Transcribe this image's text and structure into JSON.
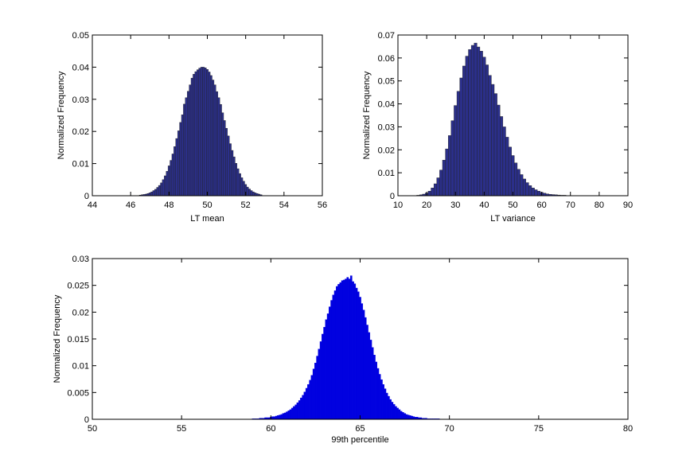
{
  "chart_data": [
    {
      "type": "bar",
      "panel": "lt-mean",
      "xlabel": "LT mean",
      "ylabel": "Normalized Frequency",
      "xlim": [
        44,
        56
      ],
      "ylim": [
        0,
        0.05
      ],
      "xticks": [
        "44",
        "46",
        "48",
        "50",
        "52",
        "54",
        "56"
      ],
      "yticks": [
        "0",
        "0.01",
        "0.02",
        "0.03",
        "0.04",
        "0.05"
      ],
      "bar_color": "#2b2f8a",
      "edge_color": "#202020",
      "bin_width": 0.1,
      "x": [
        46.5,
        46.6,
        46.7,
        46.8,
        46.9,
        47.0,
        47.1,
        47.2,
        47.3,
        47.4,
        47.5,
        47.6,
        47.7,
        47.8,
        47.9,
        48.0,
        48.1,
        48.2,
        48.3,
        48.4,
        48.5,
        48.6,
        48.7,
        48.8,
        48.9,
        49.0,
        49.1,
        49.2,
        49.3,
        49.4,
        49.5,
        49.6,
        49.7,
        49.8,
        49.9,
        50.0,
        50.1,
        50.2,
        50.3,
        50.4,
        50.5,
        50.6,
        50.7,
        50.8,
        50.9,
        51.0,
        51.1,
        51.2,
        51.3,
        51.4,
        51.5,
        51.6,
        51.7,
        51.8,
        51.9,
        52.0,
        52.1,
        52.2,
        52.3,
        52.4,
        52.5,
        52.6,
        52.7,
        52.8
      ],
      "values": [
        0.0002,
        0.0003,
        0.0004,
        0.0005,
        0.0007,
        0.0009,
        0.0012,
        0.0016,
        0.002,
        0.0026,
        0.0032,
        0.004,
        0.005,
        0.0062,
        0.0076,
        0.0093,
        0.011,
        0.013,
        0.0153,
        0.0178,
        0.0202,
        0.0228,
        0.0252,
        0.0285,
        0.0305,
        0.0325,
        0.0345,
        0.0366,
        0.0378,
        0.0386,
        0.0392,
        0.0397,
        0.04,
        0.04,
        0.0398,
        0.0393,
        0.0385,
        0.0374,
        0.036,
        0.0345,
        0.0324,
        0.0305,
        0.0284,
        0.0258,
        0.0234,
        0.021,
        0.0186,
        0.0162,
        0.0141,
        0.0121,
        0.0101,
        0.0084,
        0.0069,
        0.0056,
        0.0045,
        0.0035,
        0.0027,
        0.0021,
        0.0016,
        0.0012,
        0.0009,
        0.0007,
        0.0005,
        0.0003
      ]
    },
    {
      "type": "bar",
      "panel": "lt-variance",
      "xlabel": "LT variance",
      "ylabel": "Normalized Frequency",
      "xlim": [
        10,
        90
      ],
      "ylim": [
        0,
        0.07
      ],
      "xticks": [
        "10",
        "20",
        "30",
        "40",
        "50",
        "60",
        "70",
        "80",
        "90"
      ],
      "yticks": [
        "0",
        "0.01",
        "0.02",
        "0.03",
        "0.04",
        "0.05",
        "0.06",
        "0.07"
      ],
      "bar_color": "#2b2f8a",
      "edge_color": "#202020",
      "bin_width": 1,
      "x": [
        17,
        18,
        19,
        20,
        21,
        22,
        23,
        24,
        25,
        26,
        27,
        28,
        29,
        30,
        31,
        32,
        33,
        34,
        35,
        36,
        37,
        38,
        39,
        40,
        41,
        42,
        43,
        44,
        45,
        46,
        47,
        48,
        49,
        50,
        51,
        52,
        53,
        54,
        55,
        56,
        57,
        58,
        59,
        60,
        61,
        62,
        63,
        64,
        65,
        66,
        67,
        68,
        69,
        70
      ],
      "values": [
        0.0002,
        0.0004,
        0.0007,
        0.0012,
        0.002,
        0.0034,
        0.0052,
        0.0078,
        0.0112,
        0.0155,
        0.0204,
        0.0262,
        0.0327,
        0.0393,
        0.0455,
        0.0513,
        0.0565,
        0.0608,
        0.0637,
        0.0655,
        0.0665,
        0.0648,
        0.063,
        0.0604,
        0.057,
        0.0524,
        0.0485,
        0.0445,
        0.0395,
        0.0345,
        0.03,
        0.0255,
        0.0212,
        0.0175,
        0.0143,
        0.0115,
        0.0092,
        0.0073,
        0.0057,
        0.0044,
        0.0034,
        0.0026,
        0.002,
        0.0015,
        0.0011,
        0.0008,
        0.0006,
        0.0005,
        0.0004,
        0.0003,
        0.0002,
        0.0002,
        0.0001,
        0.0001
      ]
    },
    {
      "type": "bar",
      "panel": "99th-percentile",
      "xlabel": "99th percentile",
      "ylabel": "Normalized Frequency",
      "xlim": [
        50,
        80
      ],
      "ylim": [
        0,
        0.03
      ],
      "xticks": [
        "50",
        "55",
        "60",
        "65",
        "70",
        "75",
        "80"
      ],
      "yticks": [
        "0",
        "0.005",
        "0.01",
        "0.015",
        "0.02",
        "0.025",
        "0.03"
      ],
      "bar_color": "#0000e0",
      "edge_color": "#0000e0",
      "bin_width": 0.1,
      "x": [
        59.0,
        59.1,
        59.2,
        59.3,
        59.4,
        59.5,
        59.6,
        59.7,
        59.8,
        59.9,
        60.0,
        60.1,
        60.2,
        60.3,
        60.4,
        60.5,
        60.6,
        60.7,
        60.8,
        60.9,
        61.0,
        61.1,
        61.2,
        61.3,
        61.4,
        61.5,
        61.6,
        61.7,
        61.8,
        61.9,
        62.0,
        62.1,
        62.2,
        62.3,
        62.4,
        62.5,
        62.6,
        62.7,
        62.8,
        62.9,
        63.0,
        63.1,
        63.2,
        63.3,
        63.4,
        63.5,
        63.6,
        63.7,
        63.8,
        63.9,
        64.0,
        64.1,
        64.2,
        64.3,
        64.4,
        64.5,
        64.6,
        64.7,
        64.8,
        64.9,
        65.0,
        65.1,
        65.2,
        65.3,
        65.4,
        65.5,
        65.6,
        65.7,
        65.8,
        65.9,
        66.0,
        66.1,
        66.2,
        66.3,
        66.4,
        66.5,
        66.6,
        66.7,
        66.8,
        66.9,
        67.0,
        67.1,
        67.2,
        67.3,
        67.4,
        67.5,
        67.6,
        67.7,
        67.8,
        67.9,
        68.0,
        68.1,
        68.2,
        68.3,
        68.4,
        68.5,
        68.6,
        68.7,
        68.8,
        68.9,
        69.0,
        69.1,
        69.2,
        69.3,
        69.4
      ],
      "values": [
        0.0001,
        0.0001,
        0.0001,
        0.0001,
        0.0002,
        0.0002,
        0.0002,
        0.0003,
        0.0003,
        0.0003,
        0.0004,
        0.0005,
        0.0005,
        0.0006,
        0.0007,
        0.0008,
        0.0009,
        0.0011,
        0.0012,
        0.0014,
        0.0016,
        0.0018,
        0.0021,
        0.0024,
        0.0027,
        0.0031,
        0.0035,
        0.004,
        0.0045,
        0.0051,
        0.0058,
        0.0065,
        0.0073,
        0.0082,
        0.0094,
        0.0105,
        0.0118,
        0.0131,
        0.0145,
        0.0159,
        0.0172,
        0.0186,
        0.0197,
        0.021,
        0.0222,
        0.0232,
        0.024,
        0.0248,
        0.0252,
        0.0255,
        0.0259,
        0.026,
        0.0262,
        0.0265,
        0.0262,
        0.0268,
        0.0257,
        0.0253,
        0.0245,
        0.0238,
        0.0228,
        0.0216,
        0.0204,
        0.019,
        0.0176,
        0.0162,
        0.0148,
        0.0134,
        0.012,
        0.0107,
        0.0095,
        0.0084,
        0.0074,
        0.0065,
        0.0057,
        0.0049,
        0.0043,
        0.0037,
        0.0032,
        0.0028,
        0.0024,
        0.0021,
        0.0018,
        0.0015,
        0.0013,
        0.0011,
        0.0009,
        0.0008,
        0.0007,
        0.0006,
        0.0005,
        0.0004,
        0.0004,
        0.0003,
        0.0003,
        0.0002,
        0.0002,
        0.0002,
        0.0001,
        0.0001,
        0.0001,
        0.0001,
        0.0001,
        0.0001,
        0.0001
      ]
    }
  ]
}
